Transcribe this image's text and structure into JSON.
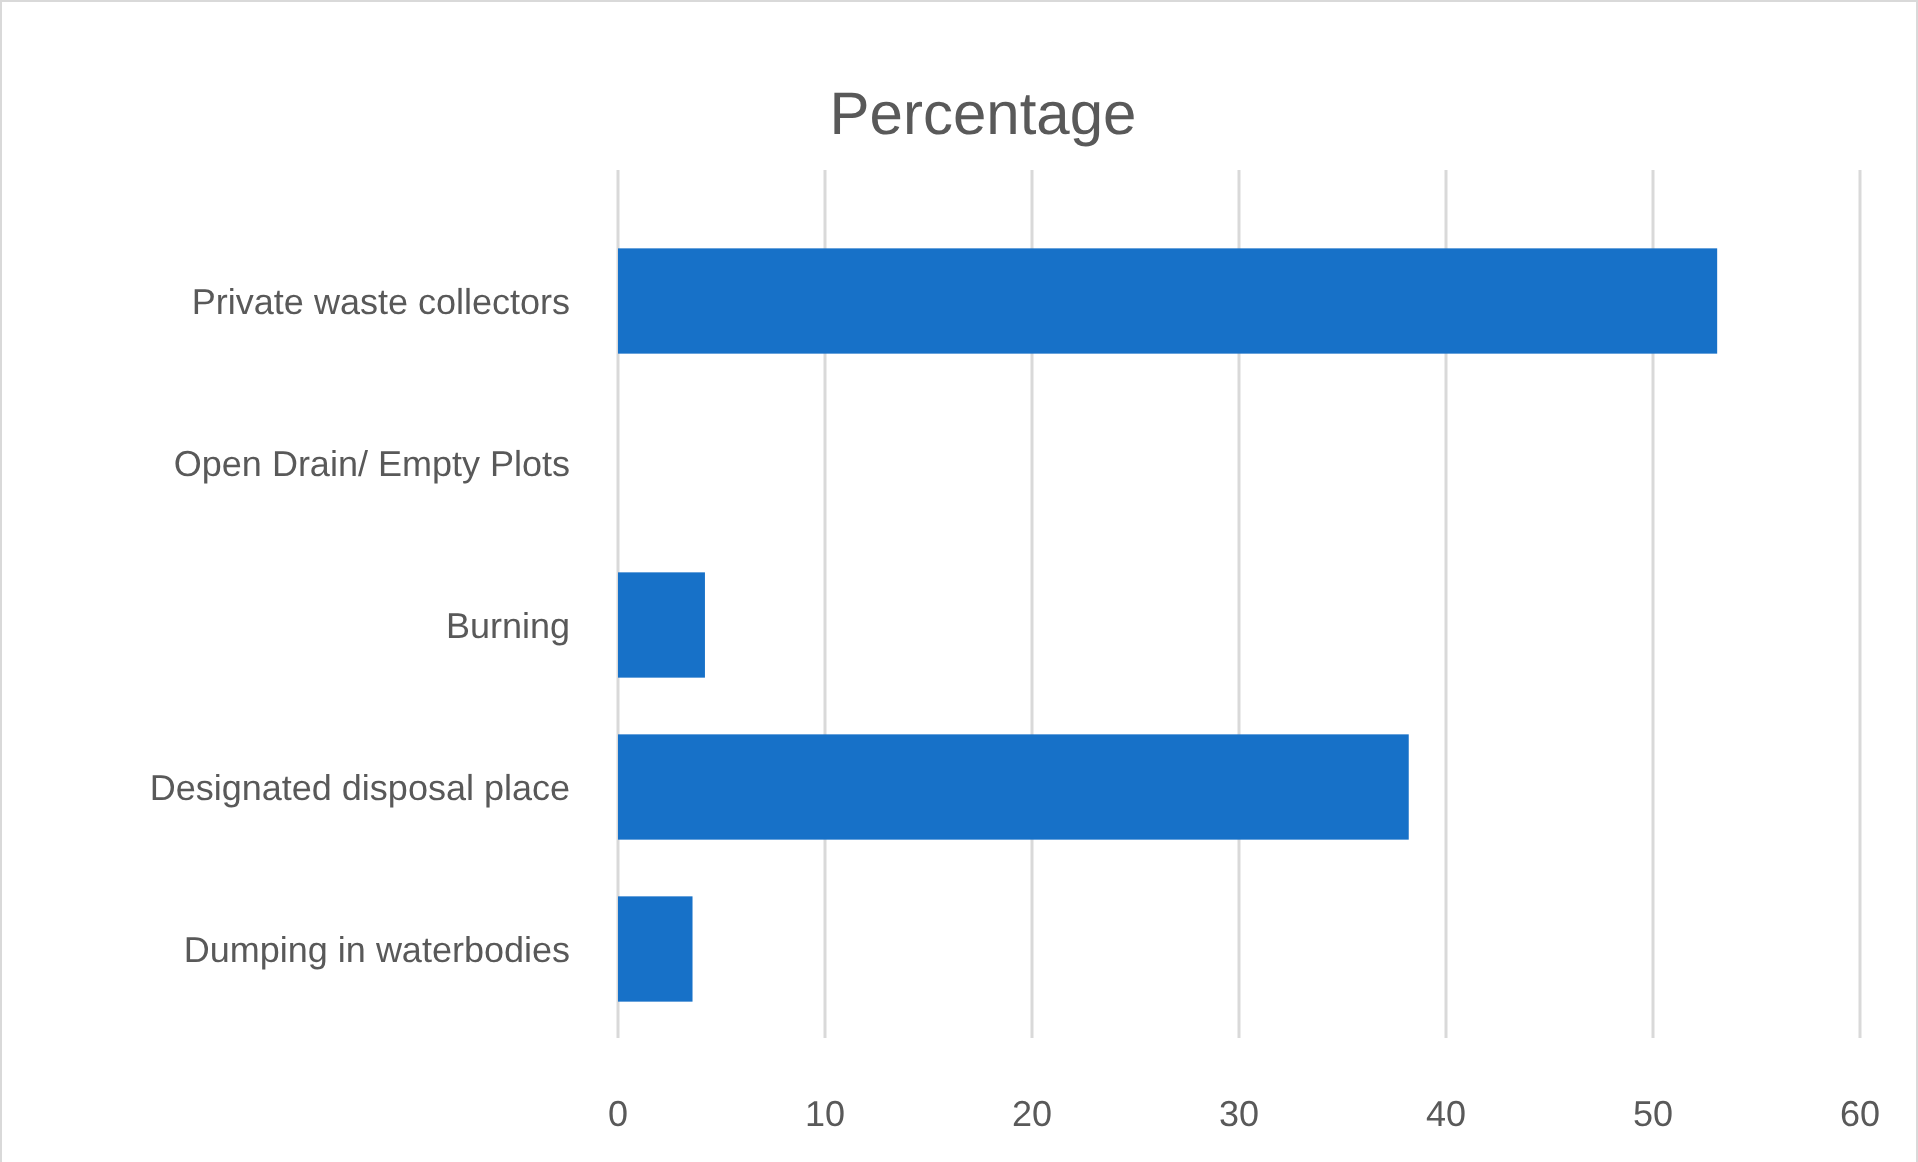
{
  "chart_data": {
    "type": "bar",
    "orientation": "horizontal",
    "title": "Percentage",
    "categories": [
      "Private waste collectors",
      "Open Drain/ Empty Plots",
      "Burning",
      "Designated disposal place",
      "Dumping in waterbodies"
    ],
    "values": [
      53.1,
      0,
      4.2,
      38.2,
      3.6
    ],
    "color": "#1771c8",
    "xlim": [
      0,
      60
    ],
    "xticks": [
      0,
      10,
      20,
      30,
      40,
      50,
      60
    ],
    "grid": "x"
  }
}
